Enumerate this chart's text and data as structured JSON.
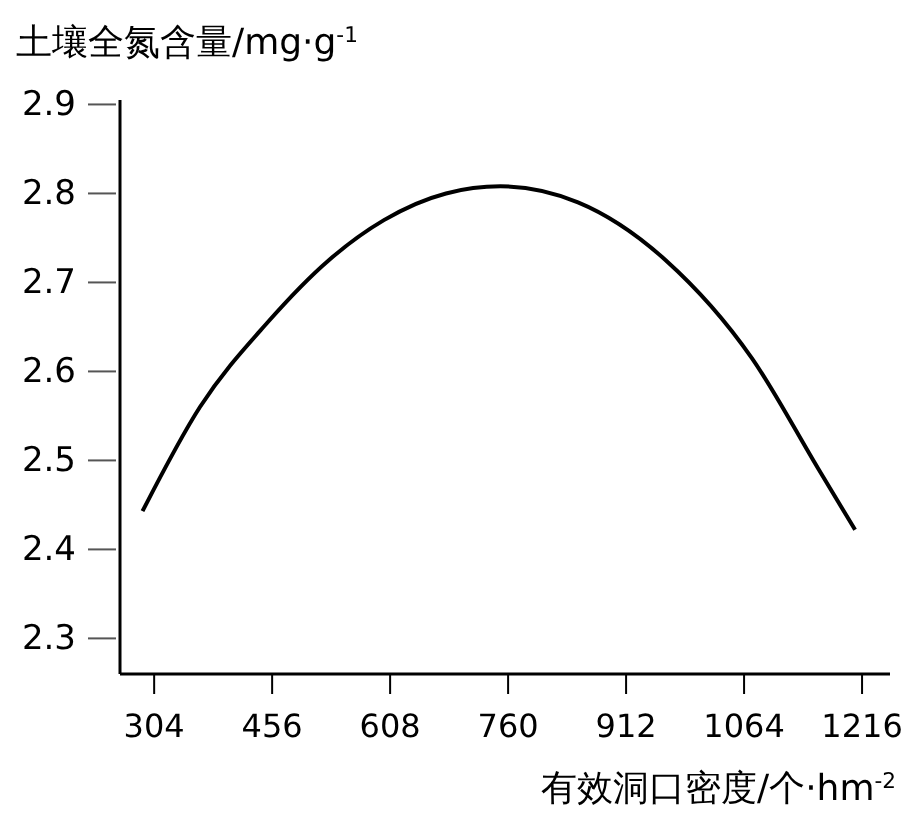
{
  "chart_data": {
    "type": "line",
    "ylabel": "土壤全氮含量/mg·g$^{-1}$",
    "xlabel": "有效洞口密度/个·hm$^{-2}$",
    "x": [
      289,
      363,
      450,
      529,
      600,
      680,
      750,
      850,
      963,
      1074,
      1160,
      1207
    ],
    "values": [
      2.443,
      2.56,
      2.655,
      2.725,
      2.77,
      2.8,
      2.808,
      2.79,
      2.725,
      2.615,
      2.49,
      2.422
    ],
    "color": "#000000",
    "xlim": [
      260,
      1252
    ],
    "ylim": [
      2.26,
      2.905
    ],
    "xticks": [
      304,
      456,
      608,
      760,
      912,
      1064,
      1216
    ],
    "yticks": [
      2.3,
      2.4,
      2.5,
      2.6,
      2.7,
      2.8,
      2.9
    ],
    "grid": false,
    "marker": "none",
    "line_style": "solid"
  }
}
